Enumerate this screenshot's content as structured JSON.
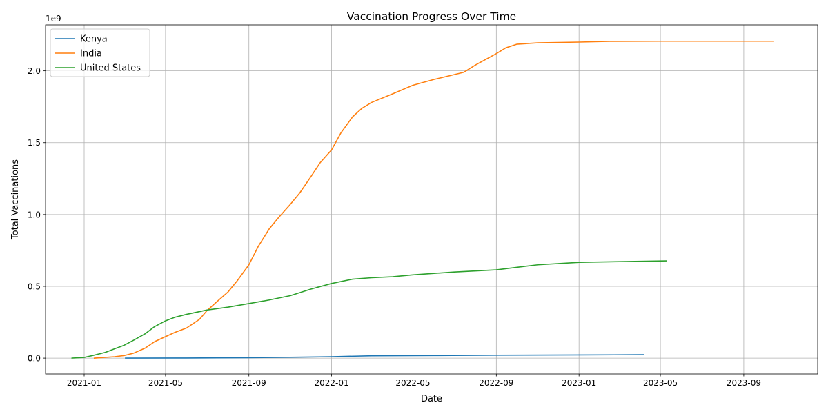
{
  "chart_data": {
    "type": "line",
    "title": "Vaccination Progress Over Time",
    "xlabel": "Date",
    "ylabel": "Total Vaccinations",
    "y_offset_label": "1e9",
    "xlim": [
      "2020-11-05",
      "2023-12-19"
    ],
    "ylim": [
      -110000000,
      2320000000
    ],
    "x_ticks": [
      {
        "value": "2021-01-01",
        "label": "2021-01"
      },
      {
        "value": "2021-05-01",
        "label": "2021-05"
      },
      {
        "value": "2021-09-01",
        "label": "2021-09"
      },
      {
        "value": "2022-01-01",
        "label": "2022-01"
      },
      {
        "value": "2022-05-01",
        "label": "2022-05"
      },
      {
        "value": "2022-09-01",
        "label": "2022-09"
      },
      {
        "value": "2023-01-01",
        "label": "2023-01"
      },
      {
        "value": "2023-05-01",
        "label": "2023-05"
      },
      {
        "value": "2023-09-01",
        "label": "2023-09"
      }
    ],
    "y_ticks": [
      {
        "value": 0,
        "label": "0.0"
      },
      {
        "value": 500000000,
        "label": "0.5"
      },
      {
        "value": 1000000000,
        "label": "1.0"
      },
      {
        "value": 1500000000,
        "label": "1.5"
      },
      {
        "value": 2000000000,
        "label": "2.0"
      }
    ],
    "grid": true,
    "legend": "upper-left",
    "series": [
      {
        "name": "Kenya",
        "color": "#1f77b4",
        "points": [
          [
            "2021-03-03",
            0
          ],
          [
            "2021-06-01",
            1000000
          ],
          [
            "2021-09-01",
            3000000
          ],
          [
            "2021-11-01",
            6000000
          ],
          [
            "2022-01-01",
            10000000
          ],
          [
            "2022-03-01",
            16500000
          ],
          [
            "2022-06-01",
            18000000
          ],
          [
            "2022-09-01",
            20500000
          ],
          [
            "2023-01-01",
            22500000
          ],
          [
            "2023-04-06",
            24000000
          ]
        ]
      },
      {
        "name": "India",
        "color": "#ff7f0e",
        "points": [
          [
            "2021-01-16",
            0
          ],
          [
            "2021-02-15",
            10000000
          ],
          [
            "2021-03-01",
            18000000
          ],
          [
            "2021-03-15",
            35000000
          ],
          [
            "2021-04-01",
            70000000
          ],
          [
            "2021-04-15",
            115000000
          ],
          [
            "2021-05-01",
            150000000
          ],
          [
            "2021-05-15",
            180000000
          ],
          [
            "2021-06-01",
            210000000
          ],
          [
            "2021-06-20",
            270000000
          ],
          [
            "2021-07-01",
            330000000
          ],
          [
            "2021-07-15",
            390000000
          ],
          [
            "2021-08-01",
            460000000
          ],
          [
            "2021-08-15",
            540000000
          ],
          [
            "2021-09-01",
            650000000
          ],
          [
            "2021-09-15",
            780000000
          ],
          [
            "2021-10-01",
            900000000
          ],
          [
            "2021-10-15",
            980000000
          ],
          [
            "2021-11-01",
            1070000000
          ],
          [
            "2021-11-15",
            1150000000
          ],
          [
            "2021-12-01",
            1260000000
          ],
          [
            "2021-12-15",
            1360000000
          ],
          [
            "2022-01-01",
            1450000000
          ],
          [
            "2022-01-15",
            1570000000
          ],
          [
            "2022-02-01",
            1680000000
          ],
          [
            "2022-02-15",
            1740000000
          ],
          [
            "2022-03-01",
            1780000000
          ],
          [
            "2022-04-01",
            1840000000
          ],
          [
            "2022-05-01",
            1900000000
          ],
          [
            "2022-06-01",
            1940000000
          ],
          [
            "2022-07-15",
            1990000000
          ],
          [
            "2022-08-01",
            2040000000
          ],
          [
            "2022-09-01",
            2120000000
          ],
          [
            "2022-09-15",
            2160000000
          ],
          [
            "2022-10-01",
            2185000000
          ],
          [
            "2022-11-01",
            2195000000
          ],
          [
            "2023-01-01",
            2200000000
          ],
          [
            "2023-02-15",
            2205000000
          ],
          [
            "2023-05-01",
            2206000000
          ],
          [
            "2023-10-15",
            2206000000
          ]
        ]
      },
      {
        "name": "United States",
        "color": "#2ca02c",
        "points": [
          [
            "2020-12-14",
            0
          ],
          [
            "2021-01-01",
            5000000
          ],
          [
            "2021-01-15",
            20000000
          ],
          [
            "2021-02-01",
            40000000
          ],
          [
            "2021-02-15",
            65000000
          ],
          [
            "2021-03-01",
            90000000
          ],
          [
            "2021-03-15",
            125000000
          ],
          [
            "2021-04-01",
            170000000
          ],
          [
            "2021-04-15",
            220000000
          ],
          [
            "2021-05-01",
            260000000
          ],
          [
            "2021-05-15",
            285000000
          ],
          [
            "2021-06-01",
            305000000
          ],
          [
            "2021-07-01",
            335000000
          ],
          [
            "2021-08-01",
            355000000
          ],
          [
            "2021-09-01",
            380000000
          ],
          [
            "2021-10-01",
            405000000
          ],
          [
            "2021-11-01",
            435000000
          ],
          [
            "2021-12-01",
            480000000
          ],
          [
            "2022-01-01",
            520000000
          ],
          [
            "2022-02-01",
            550000000
          ],
          [
            "2022-03-01",
            560000000
          ],
          [
            "2022-04-01",
            567000000
          ],
          [
            "2022-05-01",
            580000000
          ],
          [
            "2022-07-01",
            600000000
          ],
          [
            "2022-09-01",
            615000000
          ],
          [
            "2022-11-01",
            650000000
          ],
          [
            "2023-01-01",
            667000000
          ],
          [
            "2023-03-01",
            672000000
          ],
          [
            "2023-05-10",
            677000000
          ]
        ]
      }
    ]
  }
}
